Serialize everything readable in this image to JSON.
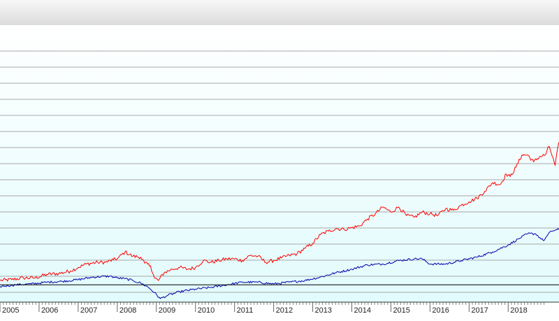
{
  "chart_data": {
    "type": "line",
    "title": "",
    "xlabel": "",
    "ylabel": "",
    "x_tick_labels": [
      "2005",
      "2006",
      "2007",
      "2008",
      "2009",
      "2010",
      "2011",
      "2012",
      "2013",
      "2014",
      "2015",
      "2016",
      "2017",
      "2018"
    ],
    "xlim": [
      2005.0,
      2019.3
    ],
    "ylim": [
      -20,
      300
    ],
    "grid": true,
    "legend": "none",
    "baseline": 0,
    "colors": {
      "series_red": "#ff0000",
      "series_blue": "#0000aa",
      "baseline": "#000000",
      "grid": "#a8a8a8"
    },
    "series": [
      {
        "color": "#ff0000",
        "x": [
          2005.0,
          2005.3,
          2005.6,
          2005.9,
          2006.2,
          2006.5,
          2006.8,
          2007.0,
          2007.2,
          2007.5,
          2007.7,
          2007.9,
          2008.0,
          2008.2,
          2008.4,
          2008.6,
          2008.7,
          2008.85,
          2008.95,
          2009.05,
          2009.2,
          2009.4,
          2009.6,
          2009.8,
          2010.0,
          2010.2,
          2010.4,
          2010.6,
          2010.8,
          2011.0,
          2011.2,
          2011.4,
          2011.6,
          2011.8,
          2012.0,
          2012.2,
          2012.4,
          2012.6,
          2012.8,
          2013.0,
          2013.2,
          2013.4,
          2013.6,
          2013.8,
          2014.0,
          2014.2,
          2014.4,
          2014.6,
          2014.8,
          2015.0,
          2015.2,
          2015.4,
          2015.6,
          2015.8,
          2016.0,
          2016.2,
          2016.4,
          2016.6,
          2016.8,
          2017.0,
          2017.2,
          2017.4,
          2017.6,
          2017.8,
          2017.95,
          2018.05,
          2018.2,
          2018.35,
          2018.5,
          2018.65,
          2018.8,
          2018.95,
          2019.05,
          2019.2,
          2019.3
        ],
        "y": [
          5,
          6,
          8,
          8,
          12,
          13,
          16,
          20,
          24,
          26,
          26,
          29,
          30,
          38,
          33,
          32,
          25,
          22,
          8,
          5,
          14,
          18,
          20,
          18,
          20,
          28,
          26,
          28,
          30,
          30,
          28,
          34,
          33,
          26,
          28,
          31,
          34,
          36,
          42,
          48,
          58,
          62,
          65,
          64,
          66,
          68,
          76,
          82,
          90,
          84,
          90,
          80,
          78,
          84,
          82,
          80,
          88,
          86,
          92,
          96,
          100,
          108,
          118,
          116,
          128,
          125,
          136,
          150,
          150,
          142,
          148,
          150,
          160,
          138,
          165
        ]
      },
      {
        "color": "#0000aa",
        "x": [
          2005.0,
          2005.4,
          2005.8,
          2006.2,
          2006.6,
          2007.0,
          2007.4,
          2007.8,
          2008.0,
          2008.2,
          2008.4,
          2008.6,
          2008.8,
          2008.95,
          2009.1,
          2009.3,
          2009.6,
          2010.0,
          2010.4,
          2010.8,
          2011.2,
          2011.6,
          2012.0,
          2012.4,
          2012.8,
          2013.2,
          2013.6,
          2014.0,
          2014.4,
          2014.8,
          2015.2,
          2015.6,
          2015.8,
          2016.0,
          2016.4,
          2016.8,
          2017.2,
          2017.6,
          2018.0,
          2018.3,
          2018.5,
          2018.7,
          2018.9,
          2019.1,
          2019.3
        ],
        "y": [
          -2,
          0,
          1,
          3,
          4,
          6,
          9,
          10,
          8,
          7,
          5,
          2,
          -3,
          -9,
          -16,
          -12,
          -8,
          -5,
          -3,
          0,
          3,
          3,
          1,
          3,
          5,
          9,
          14,
          18,
          23,
          24,
          28,
          30,
          30,
          24,
          24,
          28,
          32,
          38,
          46,
          54,
          59,
          59,
          51,
          62,
          64
        ]
      }
    ]
  }
}
